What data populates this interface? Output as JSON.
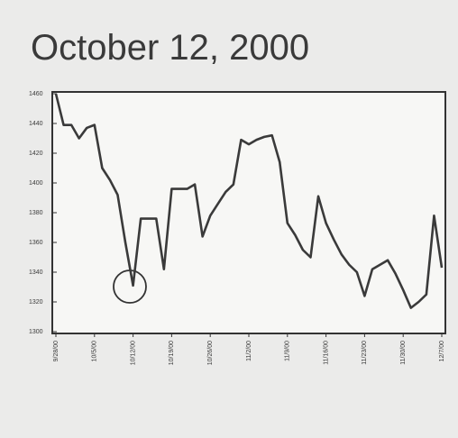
{
  "chart_data": {
    "type": "line",
    "title": "October 12, 2000",
    "categories": [
      "9/28/00",
      null,
      null,
      null,
      null,
      "10/5/00",
      null,
      null,
      null,
      null,
      "10/12/00",
      null,
      null,
      null,
      null,
      "10/19/00",
      null,
      null,
      null,
      null,
      "10/26/00",
      null,
      null,
      null,
      null,
      "11/2/00",
      null,
      null,
      null,
      null,
      "11/9/00",
      null,
      null,
      null,
      null,
      "11/16/00",
      null,
      null,
      null,
      null,
      "11/23/00",
      null,
      null,
      null,
      null,
      "11/30/00",
      null,
      null,
      null,
      null,
      "12/7/00"
    ],
    "series": [
      {
        "color": "#3a3a3a",
        "values": [
          1460,
          1439,
          1439,
          1430,
          1437,
          1439,
          1410,
          1402,
          1392,
          1360,
          1331,
          1376,
          1376,
          1376,
          1342,
          1396,
          1396,
          1396,
          1399,
          1364,
          1378,
          1386,
          1394,
          1399,
          1429,
          1426,
          1429,
          1431,
          1432,
          1414,
          1373,
          1365,
          1355,
          1350,
          1391,
          1373,
          1362,
          1352,
          1345,
          1340,
          1324,
          1342,
          1345,
          1348,
          1339,
          1328,
          1316,
          1320,
          1325,
          1378,
          1343
        ]
      }
    ],
    "ylim": [
      1300,
      1460
    ],
    "yticks": [
      1300,
      1320,
      1340,
      1360,
      1380,
      1400,
      1420,
      1440,
      1460
    ]
  }
}
